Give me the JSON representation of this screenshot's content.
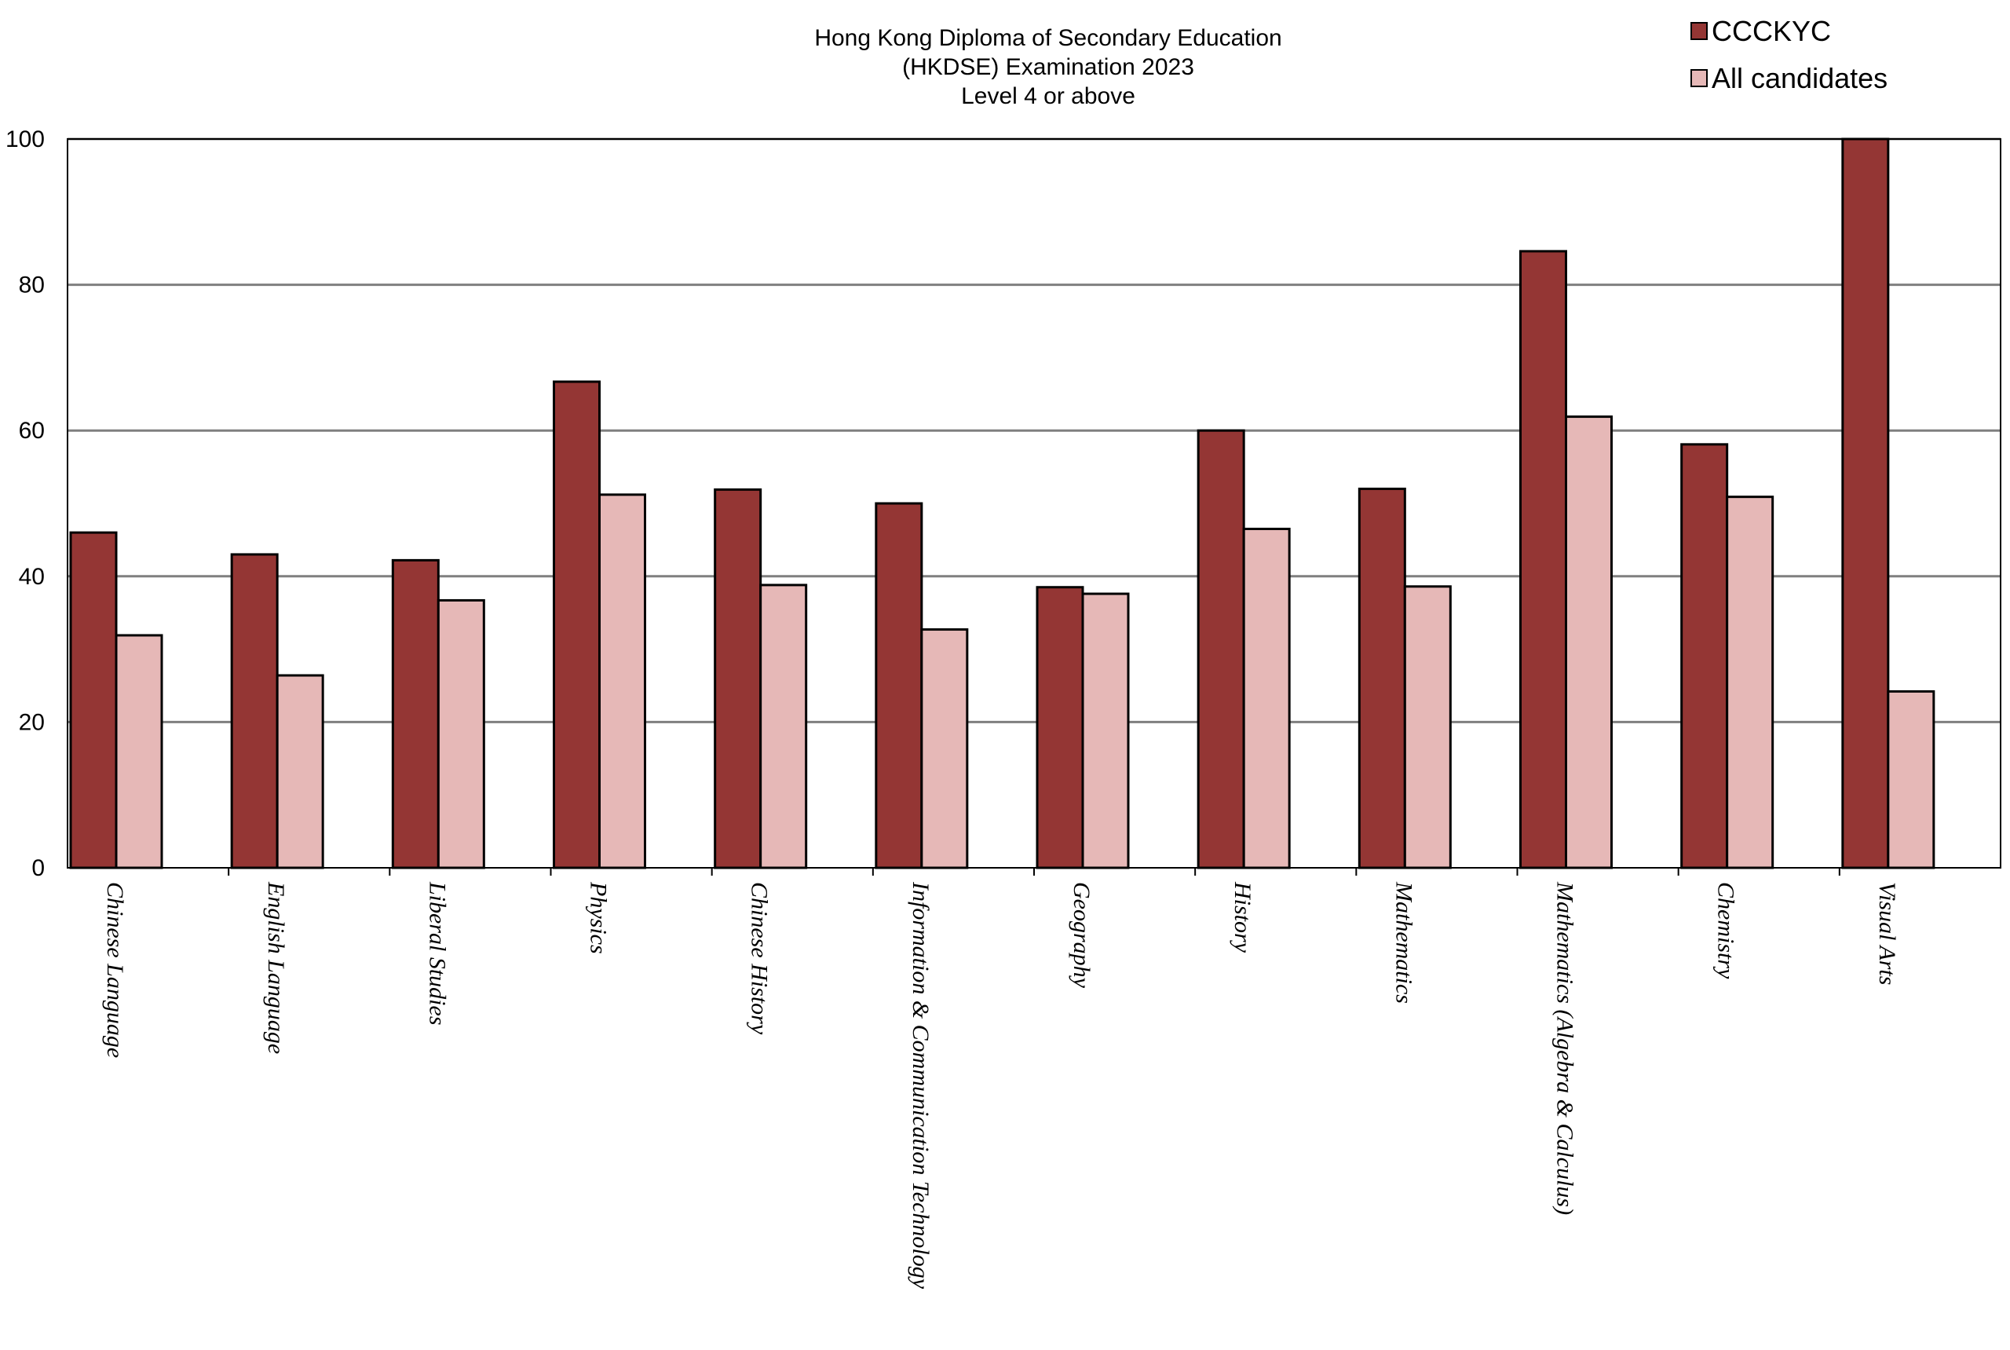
{
  "chart_data": {
    "type": "bar",
    "title_lines": [
      "Hong Kong Diploma of Secondary Education",
      "(HKDSE) Examination 2023",
      "Level 4 or above"
    ],
    "categories": [
      "Chinese Language",
      "English Language",
      "Liberal Studies",
      "Physics",
      "Chinese History",
      "Information & Communication Technology",
      "Geography",
      "History",
      "Mathematics",
      "Mathematics (Algebra & Calculus)",
      "Chemistry",
      "Visual Arts"
    ],
    "series": [
      {
        "name": "CCCKYC",
        "color": "#943634",
        "values": [
          46,
          43,
          42.2,
          66.7,
          51.9,
          50,
          38.5,
          60,
          52,
          84.6,
          58.1,
          100
        ]
      },
      {
        "name": "All candidates",
        "color": "#E6B8B7",
        "values": [
          31.9,
          26.4,
          36.7,
          51.2,
          38.8,
          32.7,
          37.6,
          46.5,
          38.6,
          61.9,
          50.9,
          24.2
        ]
      }
    ],
    "ylim": [
      0,
      100
    ],
    "yticks": [
      0,
      20,
      40,
      60,
      80,
      100
    ],
    "grid": true,
    "legend_position": "top-right"
  }
}
